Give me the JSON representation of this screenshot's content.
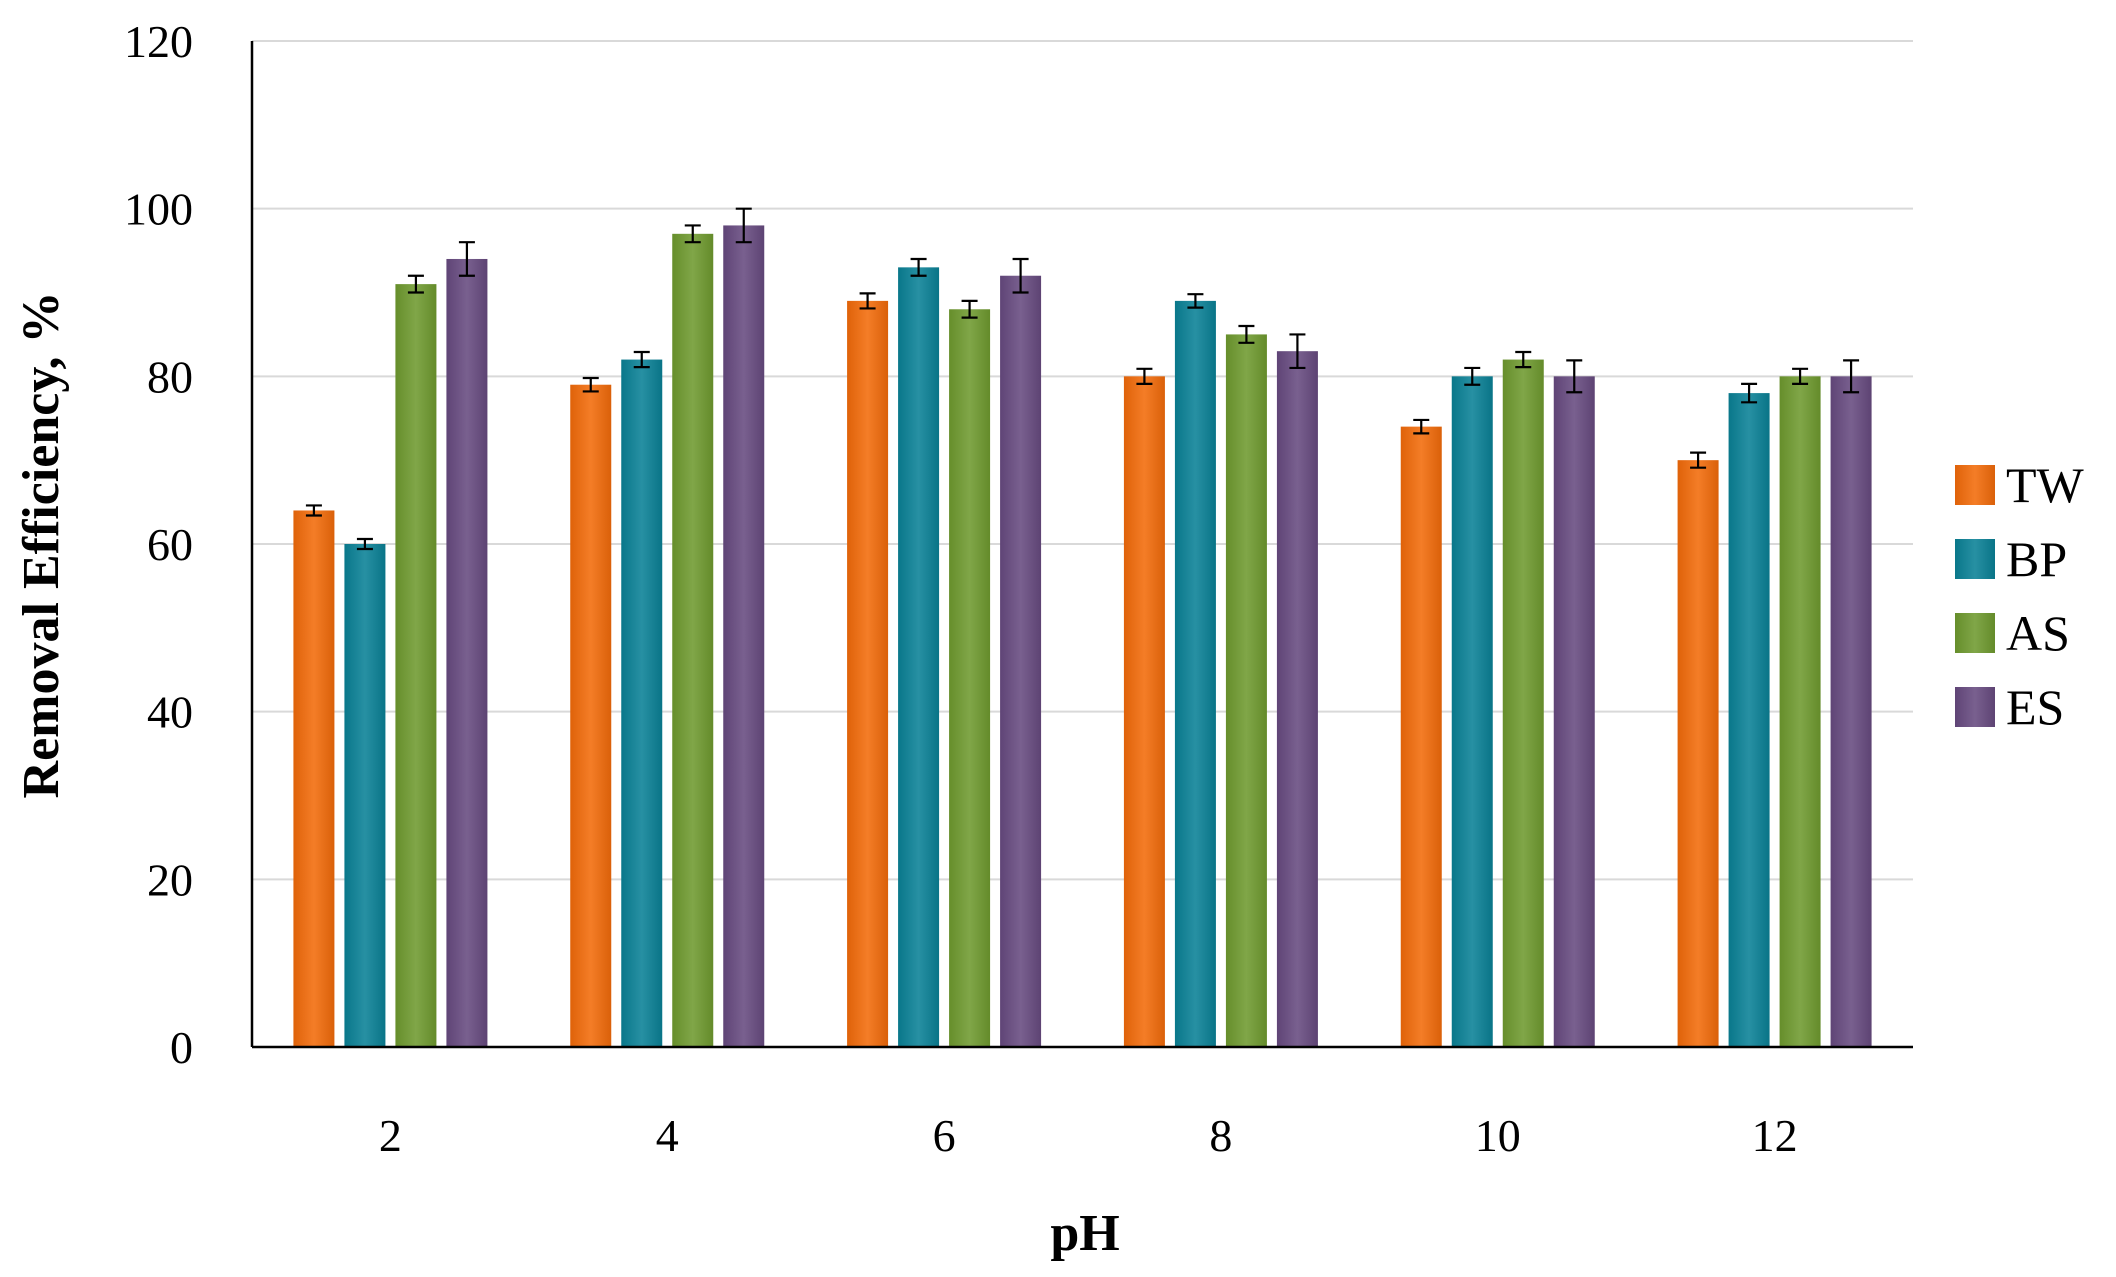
{
  "chart_data": {
    "type": "bar",
    "title": "",
    "xlabel": "pH",
    "ylabel": "Removal Efficiency, %",
    "ylim": [
      0,
      120
    ],
    "yticks": [
      "0",
      "20",
      "40",
      "60",
      "80",
      "100",
      "120"
    ],
    "categories": [
      "2",
      "4",
      "6",
      "8",
      "10",
      "12"
    ],
    "grid": true,
    "legend_position": "right",
    "series": [
      {
        "name": "TW",
        "color": "#f26b0a",
        "values": [
          64,
          79,
          89,
          80,
          74,
          70
        ],
        "errors": [
          0.6,
          0.8,
          0.9,
          0.9,
          0.8,
          0.9
        ]
      },
      {
        "name": "BP",
        "color": "#0a8196",
        "values": [
          60,
          82,
          93,
          89,
          80,
          78
        ],
        "errors": [
          0.6,
          0.9,
          1.0,
          0.8,
          1.0,
          1.1
        ]
      },
      {
        "name": "AS",
        "color": "#6f9a2f",
        "values": [
          91,
          97,
          88,
          85,
          82,
          80
        ],
        "errors": [
          1.0,
          1.0,
          1.0,
          1.0,
          0.9,
          0.9
        ]
      },
      {
        "name": "ES",
        "color": "#674a80",
        "values": [
          94,
          98,
          92,
          83,
          80,
          80
        ],
        "errors": [
          2.0,
          2.0,
          2.0,
          2.0,
          1.9,
          1.9
        ]
      }
    ]
  }
}
